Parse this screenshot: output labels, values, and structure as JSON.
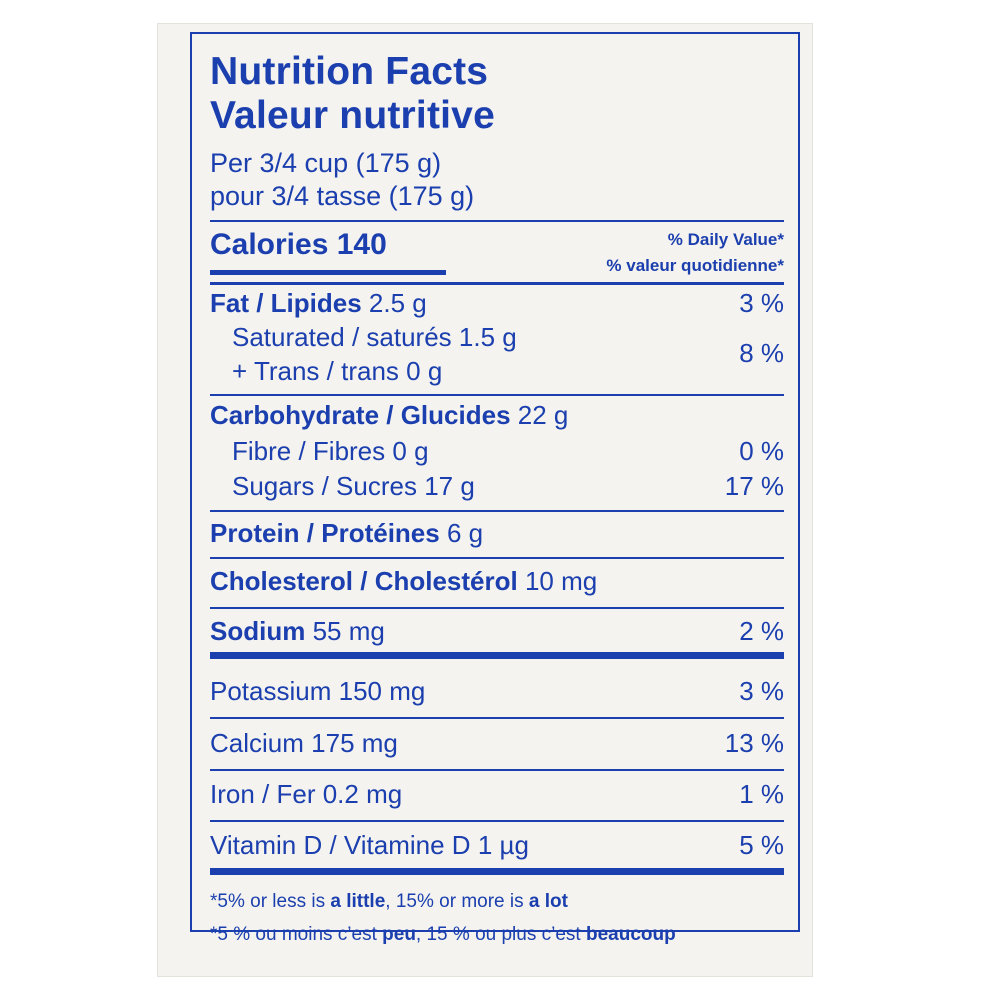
{
  "label": {
    "title_en": "Nutrition Facts",
    "title_fr": "Valeur nutritive",
    "serving_en": "Per 3/4 cup (175 g)",
    "serving_fr": "pour 3/4 tasse (175 g)",
    "calories_label": "Calories",
    "calories_value": "140",
    "dv_header_en": "% Daily Value*",
    "dv_header_fr": "% valeur quotidienne*"
  },
  "nutrients": {
    "fat": {
      "name": "Fat / Lipides",
      "amount": "2.5 g",
      "dv": "3 %"
    },
    "saturated": {
      "name": "Saturated / saturés",
      "amount": "1.5 g"
    },
    "trans": {
      "name": "+ Trans / trans",
      "amount": "0 g"
    },
    "sat_trans_dv": "8 %",
    "carbohydrate": {
      "name": "Carbohydrate / Glucides",
      "amount": "22 g"
    },
    "fibre": {
      "name": "Fibre / Fibres",
      "amount": "0 g",
      "dv": "0 %"
    },
    "sugars": {
      "name": "Sugars / Sucres",
      "amount": "17 g",
      "dv": "17 %"
    },
    "protein": {
      "name": "Protein / Protéines",
      "amount": "6 g"
    },
    "cholesterol": {
      "name": "Cholesterol / Cholestérol",
      "amount": "10 mg"
    },
    "sodium": {
      "name": "Sodium",
      "amount": "55 mg",
      "dv": "2 %"
    },
    "potassium": {
      "name": "Potassium",
      "amount": "150 mg",
      "dv": "3 %"
    },
    "calcium": {
      "name": "Calcium",
      "amount": "175 mg",
      "dv": "13 %"
    },
    "iron": {
      "name": "Iron / Fer",
      "amount": "0.2 mg",
      "dv": "1 %"
    },
    "vitamin_d": {
      "name": "Vitamin D / Vitamine D",
      "amount": "1 µg",
      "dv": "5 %"
    }
  },
  "footnote": {
    "en_part1": "*5% or less is ",
    "en_bold1": "a little",
    "en_part2": ", 15% or more is ",
    "en_bold2": "a lot",
    "fr_part1": "*5 % ou moins c’est ",
    "fr_bold1": "peu",
    "fr_part2": ", 15 % ou plus c’est ",
    "fr_bold2": "beaucoup"
  },
  "colors": {
    "ink": "#1b3fae",
    "card": "#f4f3ef"
  }
}
